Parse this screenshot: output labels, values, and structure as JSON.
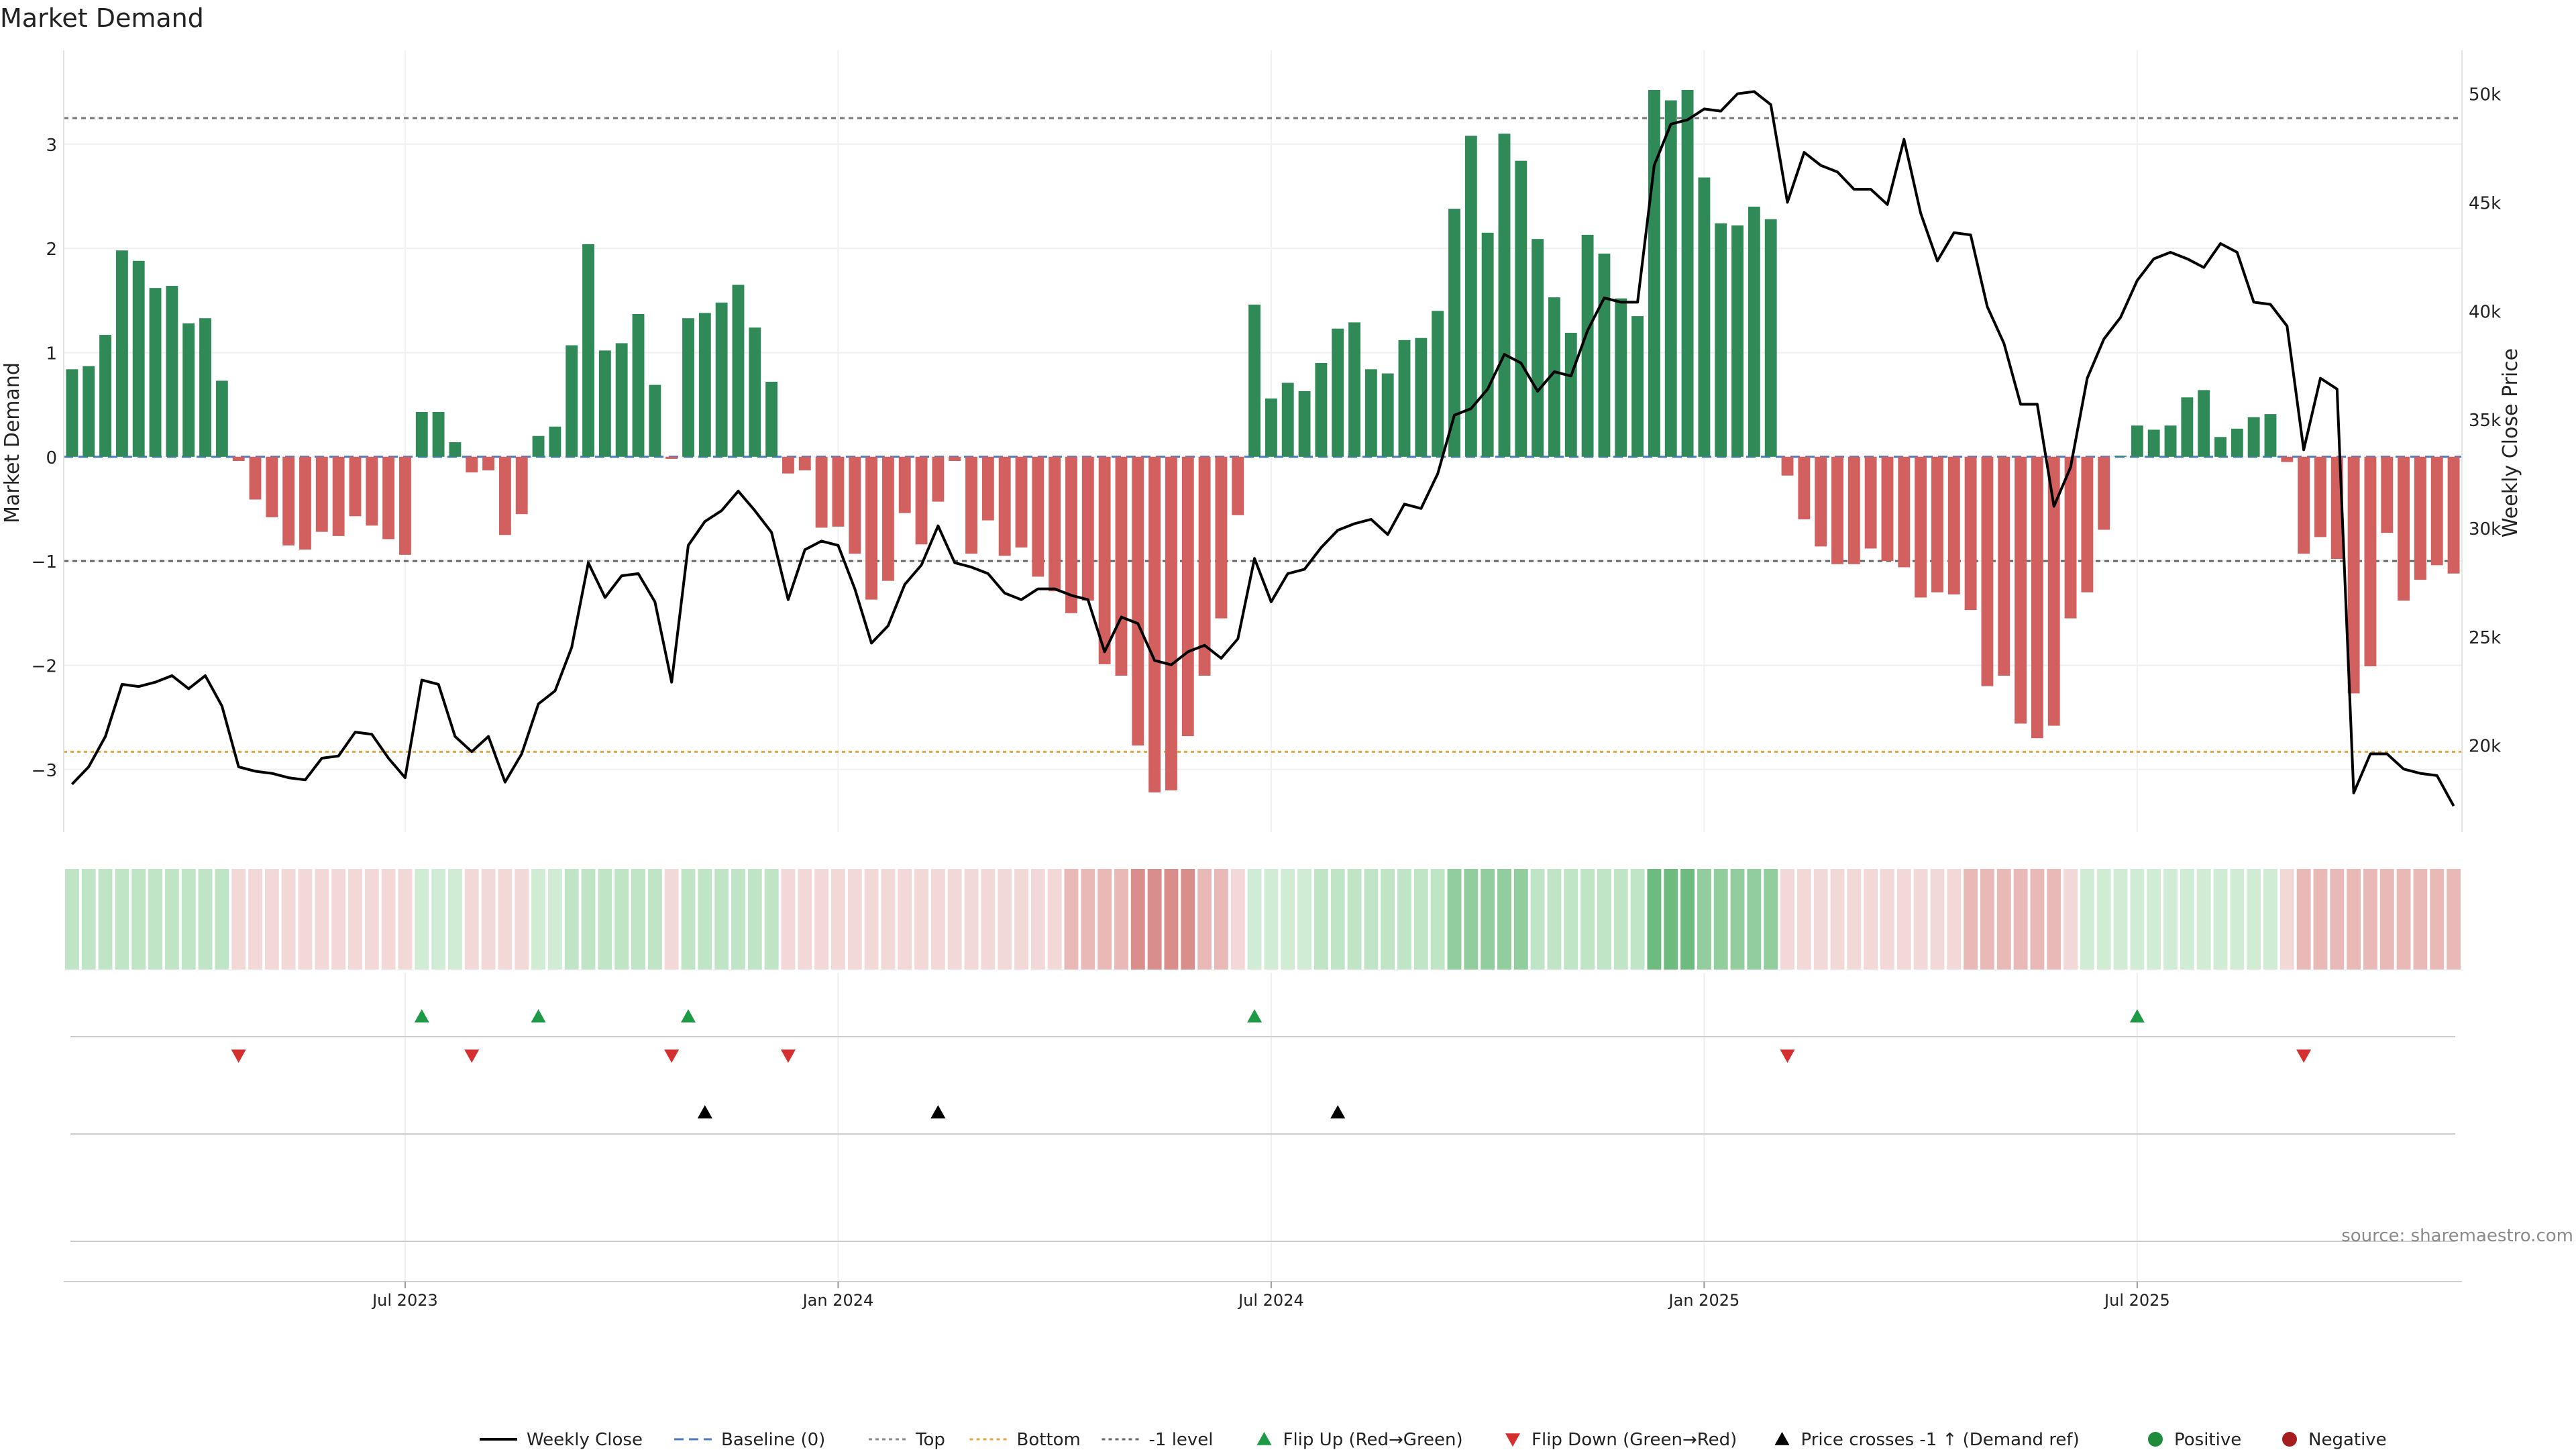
{
  "chart_data": {
    "type": "bar",
    "title": "Market Demand",
    "ylabel": "Market Demand",
    "y2label": "Weekly Close Price",
    "ylim": [
      -3.6,
      3.9
    ],
    "y2lim": [
      16000,
      52000
    ],
    "yticks": [
      3,
      2,
      1,
      0,
      -1,
      -2,
      -3
    ],
    "ytick_labels": [
      "3",
      "2",
      "1",
      "0",
      "−1",
      "−2",
      "−3"
    ],
    "y2ticks": [
      50000,
      45000,
      40000,
      35000,
      30000,
      25000,
      20000
    ],
    "y2tick_labels": [
      "50k",
      "45k",
      "40k",
      "35k",
      "30k",
      "25k",
      "20k"
    ],
    "reference_lines": {
      "top": 3.25,
      "bottom": -2.83,
      "minus_one": -1.0,
      "baseline": 0
    },
    "xticks": [
      {
        "label": "Jul 2023",
        "week": 20
      },
      {
        "label": "Jan 2024",
        "week": 46
      },
      {
        "label": "Jul 2024",
        "week": 72
      },
      {
        "label": "Jan 2025",
        "week": 98
      },
      {
        "label": "Jul 2025",
        "week": 124
      }
    ],
    "demand": [
      0.84,
      0.87,
      1.17,
      1.98,
      1.88,
      1.62,
      1.64,
      1.28,
      1.33,
      0.73,
      -0.04,
      -0.41,
      -0.58,
      -0.85,
      -0.89,
      -0.72,
      -0.76,
      -0.57,
      -0.66,
      -0.79,
      -0.94,
      0.43,
      0.43,
      0.14,
      -0.15,
      -0.13,
      -0.75,
      -0.55,
      0.2,
      0.29,
      1.07,
      2.04,
      1.02,
      1.09,
      1.37,
      0.69,
      -0.02,
      1.33,
      1.38,
      1.48,
      1.65,
      1.24,
      0.72,
      -0.16,
      -0.13,
      -0.68,
      -0.67,
      -0.93,
      -1.37,
      -1.19,
      -0.54,
      -0.84,
      -0.43,
      -0.04,
      -0.93,
      -0.61,
      -0.95,
      -0.87,
      -1.15,
      -1.29,
      -1.5,
      -1.38,
      -1.99,
      -2.1,
      -2.77,
      -3.22,
      -3.2,
      -2.68,
      -2.1,
      -1.55,
      -0.56,
      1.46,
      0.56,
      0.71,
      0.63,
      0.9,
      1.23,
      1.29,
      0.84,
      0.8,
      1.12,
      1.14,
      1.4,
      2.38,
      3.08,
      2.15,
      3.1,
      2.84,
      2.09,
      1.53,
      1.19,
      2.13,
      1.95,
      1.52,
      1.35,
      3.52,
      3.42,
      3.52,
      2.68,
      2.24,
      2.22,
      2.4,
      2.28,
      -0.18,
      -0.6,
      -0.86,
      -1.03,
      -1.03,
      -0.88,
      -1.0,
      -1.06,
      -1.35,
      -1.3,
      -1.32,
      -1.47,
      -2.2,
      -2.1,
      -2.56,
      -2.7,
      -2.58,
      -1.55,
      -1.3,
      -0.7,
      0.01,
      0.3,
      0.26,
      0.3,
      0.57,
      0.64,
      0.19,
      0.27,
      0.38,
      0.41,
      -0.05,
      -0.93,
      -0.77,
      -0.98,
      -2.27,
      -2.01,
      -0.73,
      -1.38,
      -1.18,
      -1.04,
      -1.12
    ],
    "weekly_close": [
      18200,
      19000,
      20400,
      22800,
      22700,
      22900,
      23200,
      22600,
      23200,
      21800,
      19000,
      18800,
      18700,
      18500,
      18400,
      19400,
      19500,
      20600,
      20500,
      19400,
      18500,
      23000,
      22800,
      20400,
      19700,
      20400,
      18300,
      19600,
      21900,
      22500,
      24500,
      28400,
      26800,
      27800,
      27900,
      26600,
      22900,
      29200,
      30300,
      30800,
      31700,
      30800,
      29800,
      26700,
      29000,
      29400,
      29200,
      27200,
      24700,
      25500,
      27400,
      28300,
      30100,
      28400,
      28200,
      27900,
      27000,
      26700,
      27200,
      27200,
      26900,
      26700,
      24300,
      25900,
      25600,
      23900,
      23700,
      24300,
      24600,
      24000,
      24900,
      28600,
      26600,
      27900,
      28100,
      29100,
      29900,
      30200,
      30400,
      29700,
      31100,
      30900,
      32500,
      35200,
      35500,
      36400,
      38000,
      37600,
      36300,
      37200,
      37000,
      39100,
      40600,
      40400,
      40400,
      46700,
      48600,
      48800,
      49300,
      49200,
      50000,
      50100,
      49500,
      45000,
      47300,
      46700,
      46400,
      45600,
      45600,
      44900,
      47900,
      44500,
      42300,
      43600,
      43500,
      40200,
      38500,
      35700,
      35700,
      31000,
      32800,
      36900,
      38700,
      39700,
      41400,
      42400,
      42700,
      42400,
      42000,
      43100,
      42700,
      40400,
      40300,
      39300,
      33600,
      36900,
      36400,
      17800,
      19600,
      19600,
      18900,
      18700,
      18600,
      17200
    ]
  },
  "strip_levels": [
    2,
    2,
    2,
    2,
    2,
    2,
    2,
    2,
    2,
    2,
    -1,
    -1,
    -1,
    -1,
    -1,
    -1,
    -1,
    -1,
    -1,
    -1,
    -1,
    1,
    1,
    1,
    -1,
    -1,
    -1,
    -1,
    1,
    1,
    2,
    2,
    2,
    2,
    2,
    2,
    -1,
    2,
    2,
    2,
    2,
    2,
    2,
    -1,
    -1,
    -1,
    -1,
    -1,
    -1,
    -1,
    -1,
    -1,
    -1,
    -1,
    -1,
    -1,
    -1,
    -1,
    -1,
    -1,
    -2,
    -2,
    -2,
    -2,
    -3,
    -3,
    -3,
    -3,
    -2,
    -2,
    -1,
    1,
    1,
    1,
    1,
    2,
    2,
    2,
    2,
    2,
    2,
    2,
    2,
    3,
    3,
    3,
    3,
    3,
    2,
    2,
    2,
    2,
    2,
    2,
    2,
    4,
    4,
    4,
    3,
    3,
    3,
    3,
    3,
    -1,
    -1,
    -1,
    -1,
    -1,
    -1,
    -1,
    -1,
    -1,
    -1,
    -1,
    -2,
    -2,
    -2,
    -2,
    -2,
    -2,
    -1,
    1,
    1,
    1,
    1,
    1,
    1,
    1,
    1,
    1,
    1,
    1,
    1,
    -1,
    -2,
    -2,
    -2,
    -2,
    -2,
    -2,
    -2,
    -2,
    -2,
    -2
  ],
  "flip_up_weeks": [
    21,
    28,
    37,
    71,
    124
  ],
  "flip_down_weeks": [
    10,
    24,
    36,
    43,
    103,
    134
  ],
  "price_cross_weeks": [
    38,
    52,
    76
  ],
  "source_note": "source: sharemaestro.com",
  "legend": [
    {
      "key": "weekly_close",
      "label": "Weekly Close",
      "symbol": "line",
      "color": "#000000"
    },
    {
      "key": "baseline",
      "label": "Baseline (0)",
      "symbol": "dash",
      "color": "#4a78c2"
    },
    {
      "key": "top",
      "label": "Top",
      "symbol": "dot",
      "color": "#888888"
    },
    {
      "key": "bottom",
      "label": "Bottom",
      "symbol": "dot",
      "color": "#e8a33d"
    },
    {
      "key": "minus_one",
      "label": "-1 level",
      "symbol": "dot",
      "color": "#666666"
    },
    {
      "key": "flip_up",
      "label": "Flip Up (Red→Green)",
      "symbol": "tri-up",
      "color": "#1e9a47"
    },
    {
      "key": "flip_down",
      "label": "Flip Down (Green→Red)",
      "symbol": "tri-down",
      "color": "#d62f2f"
    },
    {
      "key": "price_cross",
      "label": "Price crosses -1 ↑ (Demand ref)",
      "symbol": "tri-up",
      "color": "#000000"
    },
    {
      "key": "positive",
      "label": "Positive",
      "symbol": "circle",
      "color": "#1e8c3a"
    },
    {
      "key": "negative",
      "label": "Negative",
      "symbol": "circle",
      "color": "#a51d1d"
    }
  ],
  "colors": {
    "bar_positive": "#2f8a58",
    "bar_negative": "#d2605f",
    "price_line": "#000000",
    "strip_green": [
      "#d1ecd5",
      "#c0e4c6",
      "#92cd9e",
      "#6dbb7e",
      "#3aa152"
    ],
    "strip_red": [
      "#f2d9d8",
      "#e8b9b7",
      "#d98e8b",
      "#c86661"
    ]
  }
}
